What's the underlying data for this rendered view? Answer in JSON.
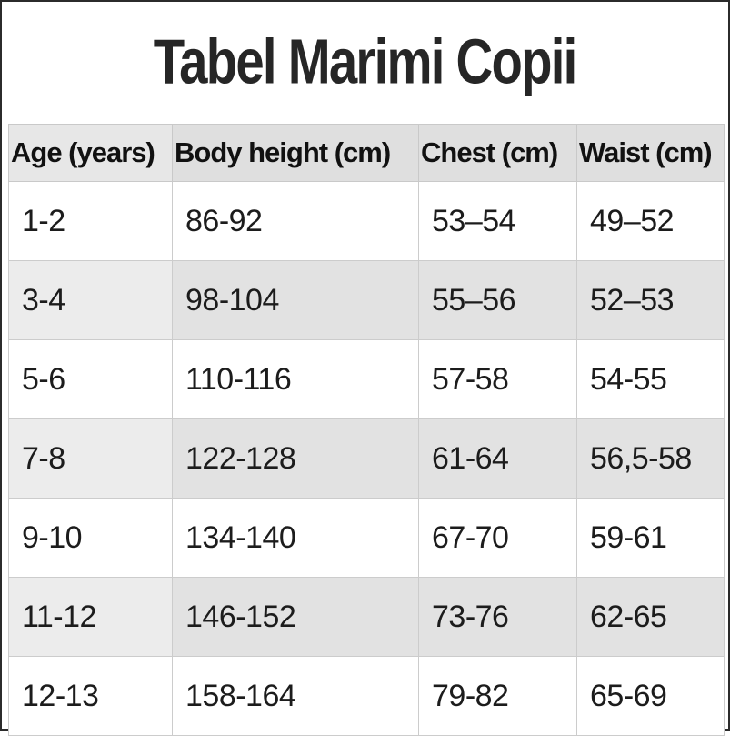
{
  "page_title": "Tabel Marimi Copii",
  "chart_data": {
    "type": "table",
    "title": "Tabel Marimi Copii",
    "columns": [
      "Age (years)",
      "Body height (cm)",
      "Chest (cm)",
      "Waist (cm)"
    ],
    "rows": [
      [
        "1-2",
        "86-92",
        "53–54",
        "49–52"
      ],
      [
        "3-4",
        "98-104",
        "55–56",
        "52–53"
      ],
      [
        "5-6",
        "110-116",
        "57-58",
        "54-55"
      ],
      [
        "7-8",
        "122-128",
        "61-64",
        "56,5-58"
      ],
      [
        "9-10",
        "134-140",
        "67-70",
        "59-61"
      ],
      [
        "11-12",
        "146-152",
        "73-76",
        "62-65"
      ],
      [
        "12-13",
        "158-164",
        "79-82",
        "65-69"
      ]
    ],
    "layout": {
      "alternating_rows": true,
      "header_position": "top",
      "units": "cm"
    }
  },
  "colors": {
    "frame_border": "#2b2b2b",
    "header_bg": "#dfdfdf",
    "row_alt_bg": "#e2e2e2",
    "row_bg": "#ffffff",
    "cell_border": "#cccccc",
    "text": "#1c1c1c"
  }
}
